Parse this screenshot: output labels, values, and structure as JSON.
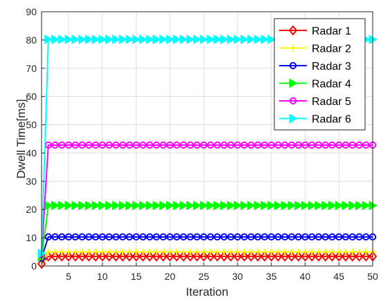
{
  "chart_data": {
    "type": "line",
    "title": "",
    "xlabel": "Iteration",
    "ylabel": "Dwell Time[ms]",
    "xlim": [
      1,
      50
    ],
    "ylim": [
      0,
      90
    ],
    "xticks": [
      5,
      10,
      15,
      20,
      25,
      30,
      35,
      40,
      45,
      50
    ],
    "yticks": [
      0,
      10,
      20,
      30,
      40,
      50,
      60,
      70,
      80,
      90
    ],
    "grid": true,
    "legend_position": "top-right",
    "x": [
      1,
      2,
      3,
      4,
      5,
      6,
      7,
      8,
      9,
      10,
      11,
      12,
      13,
      14,
      15,
      16,
      17,
      18,
      19,
      20,
      21,
      22,
      23,
      24,
      25,
      26,
      27,
      28,
      29,
      30,
      31,
      32,
      33,
      34,
      35,
      36,
      37,
      38,
      39,
      40,
      41,
      42,
      43,
      44,
      45,
      46,
      47,
      48,
      49,
      50
    ],
    "series": [
      {
        "name": "Radar 1",
        "color": "#ff0000",
        "marker": "diamond",
        "first": 0.8,
        "value": 3.4
      },
      {
        "name": "Radar 2",
        "color": "#ffff00",
        "marker": "plus",
        "first": 2.0,
        "value": 5.0
      },
      {
        "name": "Radar 3",
        "color": "#0000ff",
        "marker": "circle",
        "first": 2.8,
        "value": 10.3
      },
      {
        "name": "Radar 4",
        "color": "#00ff00",
        "marker": "triangle-right",
        "first": 3.2,
        "value": 21.4
      },
      {
        "name": "Radar 5",
        "color": "#ff00ff",
        "marker": "circle",
        "first": 4.0,
        "value": 42.8
      },
      {
        "name": "Radar 6",
        "color": "#00ffff",
        "marker": "triangle-right",
        "first": 4.5,
        "value": 80.2
      }
    ]
  }
}
